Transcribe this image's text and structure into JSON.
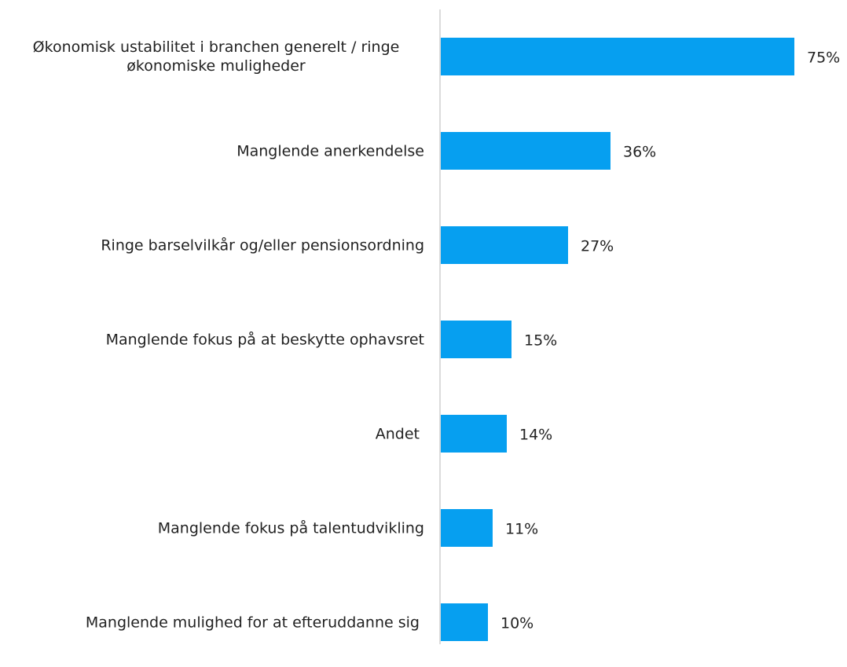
{
  "chart_data": {
    "type": "hbar",
    "categories": [
      "Økonomisk ustabilitet i branchen generelt / ringe\nøkonomiske muligheder",
      "Manglende anerkendelse",
      "Ringe barselvilkår og/eller pensionsordning",
      "Manglende fokus på at beskytte ophavsret",
      "Andet ",
      "Manglende fokus på talentudvikling",
      "Manglende mulighed for at efteruddanne sig "
    ],
    "values": [
      75,
      36,
      27,
      15,
      14,
      11,
      10
    ],
    "value_labels": [
      "75%",
      "36%",
      "27%",
      "15%",
      "14%",
      "11%",
      "10%"
    ],
    "color": "#069ff0"
  }
}
